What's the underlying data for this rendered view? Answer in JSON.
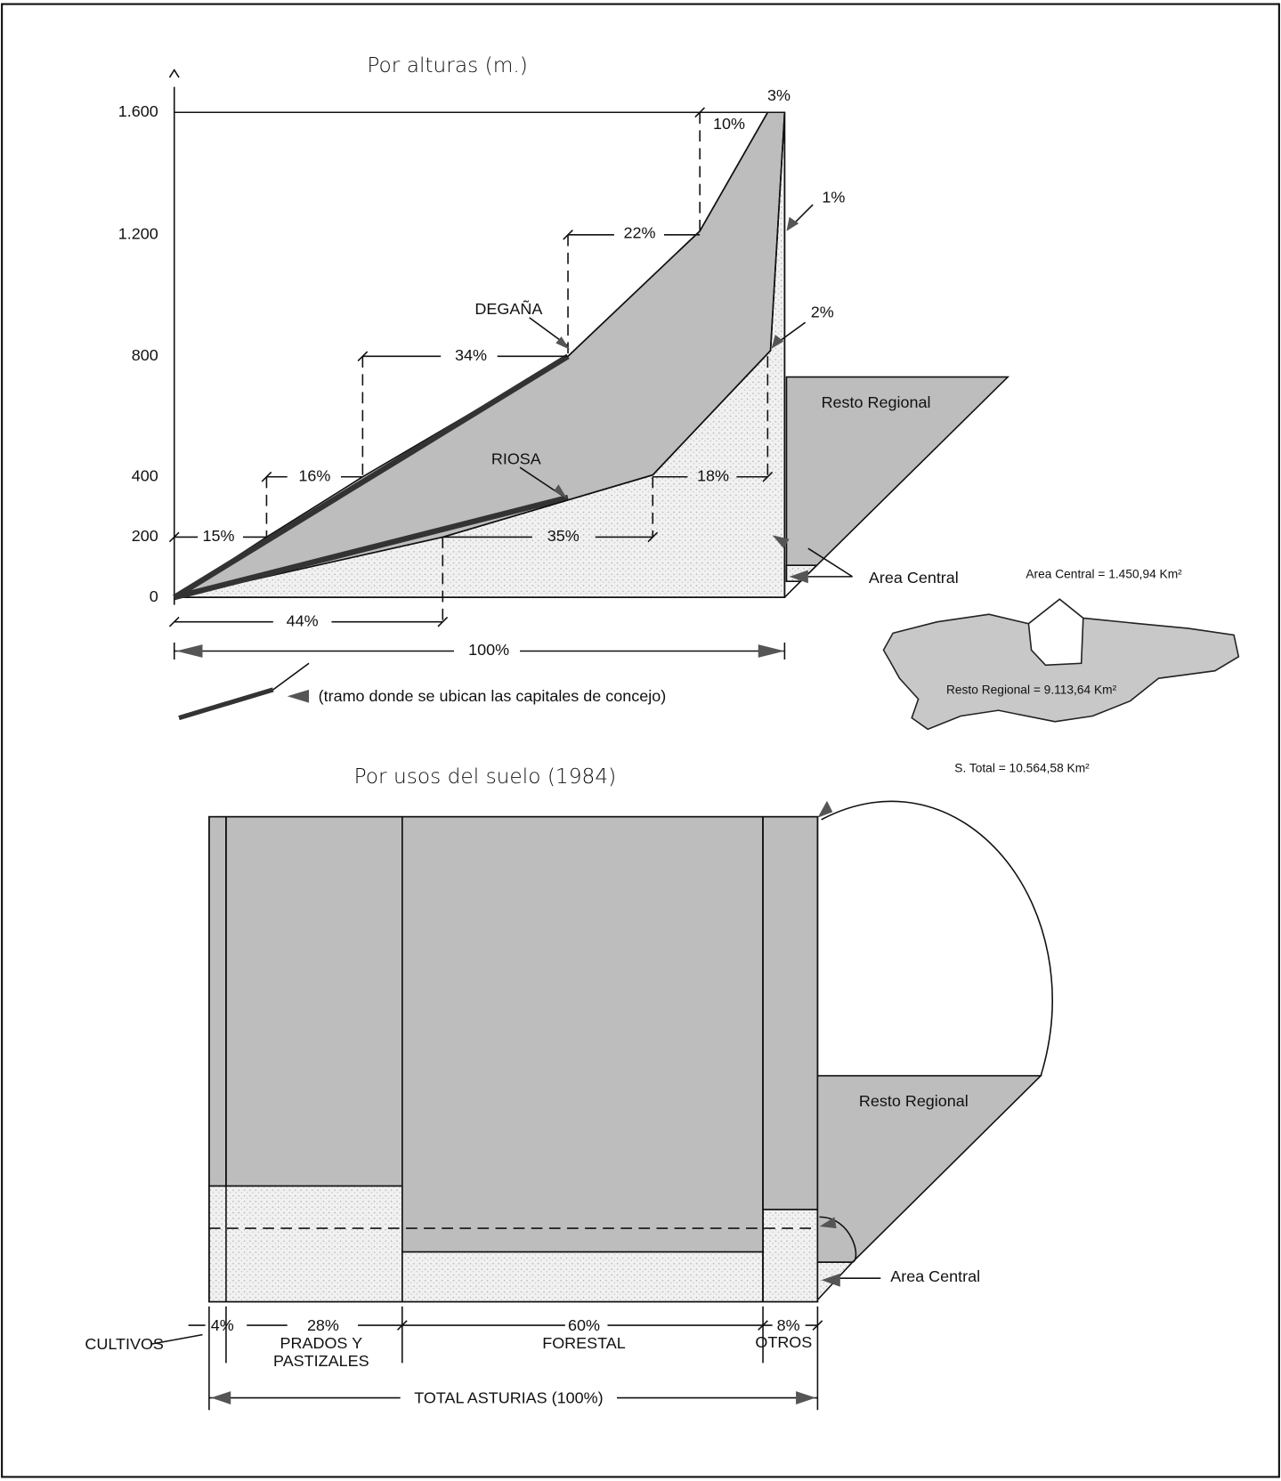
{
  "altitude": {
    "title": "Por alturas (m.)",
    "y_labels": [
      "1.600",
      "1.200",
      "800",
      "400",
      "200",
      "0"
    ],
    "shares": [
      "3%",
      "10%",
      "1%",
      "22%",
      "2%",
      "34%",
      "16%",
      "18%",
      "15%",
      "35%",
      "44%",
      "100%"
    ],
    "profiles": [
      "DEGAÑA",
      "RIOSA"
    ],
    "areas": [
      "Resto Regional",
      "Area Central"
    ],
    "legend": "(tramo donde se ubican las capitales de concejo)"
  },
  "map": {
    "central": "Area Central = 1.450,94 Km²",
    "rest": "Resto Regional = 9.113,64 Km²",
    "total": "S. Total = 10.564,58 Km²"
  },
  "land_use": {
    "title": "Por usos del suelo (1984)",
    "areas": [
      "Resto Regional",
      "Area Central"
    ],
    "shares": [
      "4%",
      "28%",
      "60%",
      "8%"
    ],
    "uses": [
      "CULTIVOS",
      "PRADOS Y",
      "PASTIZALES",
      "FORESTAL",
      "OTROS"
    ],
    "total": "TOTAL ASTURIAS (100%)"
  }
}
